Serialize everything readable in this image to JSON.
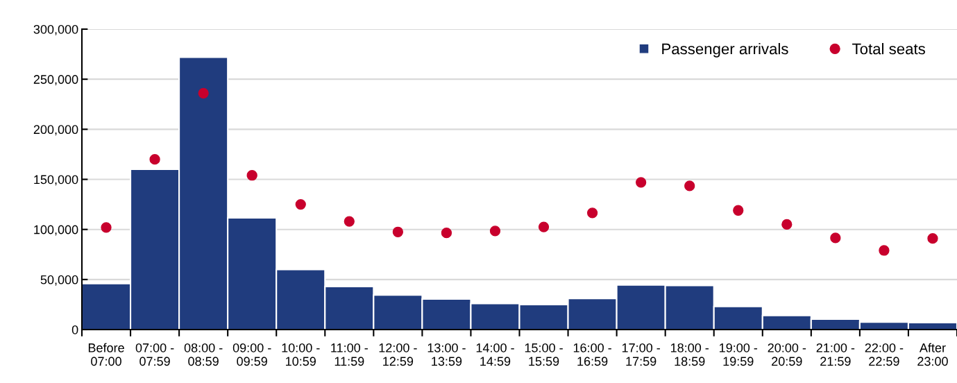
{
  "chart_data": {
    "type": "bar",
    "categories": [
      "Before\n07:00",
      "07:00 -\n07:59",
      "08:00 -\n08:59",
      "09:00 -\n09:59",
      "10:00 -\n10:59",
      "11:00 -\n11:59",
      "12:00 -\n12:59",
      "13:00 -\n13:59",
      "14:00 -\n14:59",
      "15:00 -\n15:59",
      "16:00 -\n16:59",
      "17:00 -\n17:59",
      "18:00 -\n18:59",
      "19:00 -\n19:59",
      "20:00 -\n20:59",
      "21:00 -\n21:59",
      "22:00 -\n22:59",
      "After\n23:00"
    ],
    "series": [
      {
        "name": "Passenger arrivals",
        "color": "#203c7e",
        "values": [
          46000,
          160000,
          272000,
          111500,
          60000,
          43000,
          34500,
          30500,
          26000,
          25000,
          31000,
          44500,
          44000,
          23000,
          14000,
          10500,
          7500,
          7000
        ]
      },
      {
        "name": "Total seats",
        "type": "scatter",
        "color": "#c8002d",
        "values": [
          102000,
          170000,
          236000,
          154000,
          125000,
          108000,
          97500,
          96500,
          98500,
          102500,
          116500,
          147000,
          143500,
          119000,
          105000,
          91500,
          79000,
          91000
        ]
      }
    ],
    "ylim": [
      0,
      300000
    ],
    "yticks": [
      {
        "value": 0,
        "label": "0"
      },
      {
        "value": 50000,
        "label": "50,000"
      },
      {
        "value": 100000,
        "label": "100,000"
      },
      {
        "value": 150000,
        "label": "150,000"
      },
      {
        "value": 200000,
        "label": "200,000"
      },
      {
        "value": 250000,
        "label": "250,000"
      },
      {
        "value": 300000,
        "label": "300,000"
      }
    ],
    "grid": "y",
    "legend": "top right",
    "marker": "circle"
  }
}
